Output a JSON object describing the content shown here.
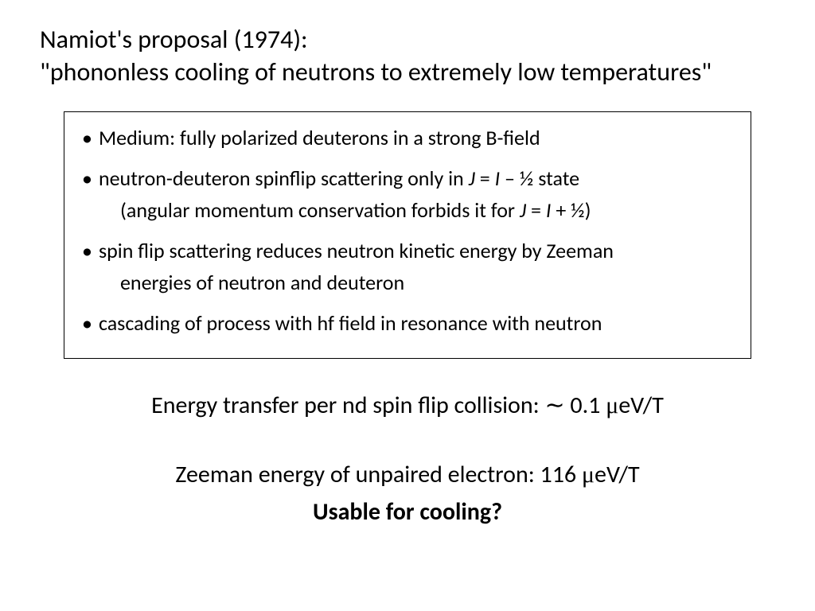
{
  "title": "Namiot's proposal (1974):",
  "subtitle": "\"phononless cooling of neutrons to extremely low temperatures\"",
  "box": {
    "b1": "Medium: fully polarized deuterons in a strong B-field",
    "b2_pre": "neutron-deuteron spinflip scattering only in ",
    "b2_j": "J",
    "b2_eq": " = ",
    "b2_i": "I",
    "b2_post": " – ½ state",
    "b2_sub_pre": "(angular momentum conservation forbids it for ",
    "b2_sub_j": "J",
    "b2_sub_eq": " = ",
    "b2_sub_i": "I",
    "b2_sub_post": " + ½)",
    "b3_l1": "spin flip scattering reduces neutron kinetic energy by Zeeman",
    "b3_l2": "energies of neutron and deuteron",
    "b4": "cascading of process with hf field in resonance with neutron"
  },
  "energy": {
    "label": "Energy transfer per nd spin flip collision:   ",
    "tilde": "∼",
    "val": " 0.1 ",
    "mu": "μ",
    "unit": "eV/T"
  },
  "zeeman": {
    "label": "Zeeman energy of unpaired electron:     116 ",
    "mu": "μ",
    "unit": "eV/T"
  },
  "question": "Usable for cooling?"
}
